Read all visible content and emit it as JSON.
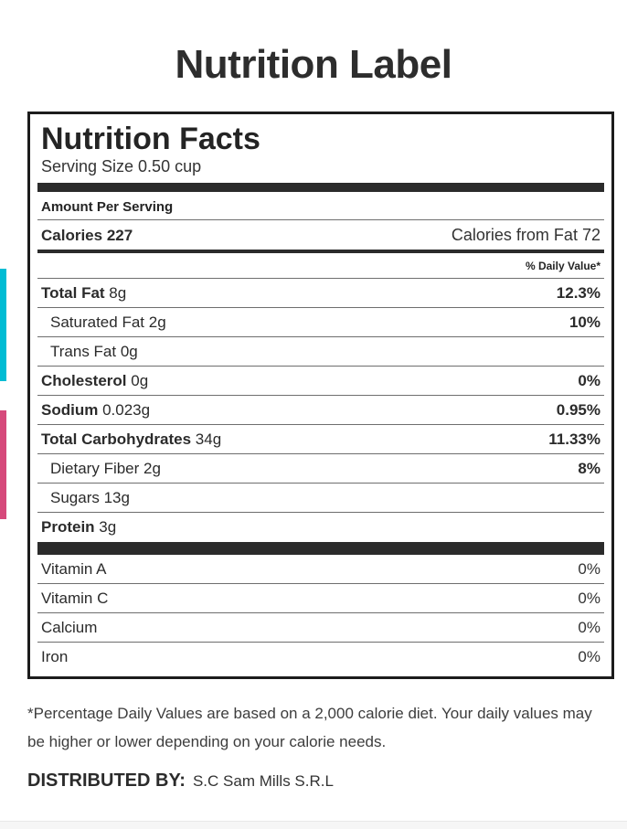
{
  "page": {
    "title": "Nutrition Label"
  },
  "label": {
    "title": "Nutrition Facts",
    "serving_size": "Serving Size 0.50 cup",
    "amount_per_serving": "Amount Per Serving",
    "calories": {
      "label": "Calories",
      "value": "227"
    },
    "calories_from_fat": {
      "label": "Calories from Fat",
      "value": "72"
    },
    "daily_value_note": "% Daily Value*",
    "nutrients": [
      {
        "name": "Total Fat",
        "amount": "8g",
        "value": "12.3%",
        "bold": true,
        "indent": false
      },
      {
        "name": "Saturated Fat",
        "amount": "2g",
        "value": "10%",
        "bold": false,
        "indent": true
      },
      {
        "name": "Trans Fat",
        "amount": "0g",
        "value": "",
        "bold": false,
        "indent": true
      },
      {
        "name": "Cholesterol",
        "amount": "0g",
        "value": "0%",
        "bold": true,
        "indent": false
      },
      {
        "name": "Sodium",
        "amount": "0.023g",
        "value": "0.95%",
        "bold": true,
        "indent": false
      },
      {
        "name": "Total Carbohydrates",
        "amount": "34g",
        "value": "11.33%",
        "bold": true,
        "indent": false
      },
      {
        "name": "Dietary Fiber",
        "amount": "2g",
        "value": "8%",
        "bold": false,
        "indent": true
      },
      {
        "name": "Sugars",
        "amount": "13g",
        "value": "",
        "bold": false,
        "indent": true
      },
      {
        "name": "Protein",
        "amount": "3g",
        "value": "",
        "bold": true,
        "indent": false
      }
    ],
    "vitamins": [
      {
        "name": "Vitamin A",
        "value": "0%"
      },
      {
        "name": "Vitamin C",
        "value": "0%"
      },
      {
        "name": "Calcium",
        "value": "0%"
      },
      {
        "name": "Iron",
        "value": "0%"
      }
    ]
  },
  "footer": {
    "disclaimer": "*Percentage Daily Values are based on a 2,000 calorie diet. Your daily values may be higher or lower depending on your calorie needs.",
    "distributed_by_label": "DISTRIBUTED BY:",
    "distributed_by_value": "S.C Sam Mills S.R.L"
  },
  "colors": {
    "accent_cyan": "#00bcd4",
    "accent_pink": "#d6497b",
    "bar_dark": "#2b2b2b"
  }
}
